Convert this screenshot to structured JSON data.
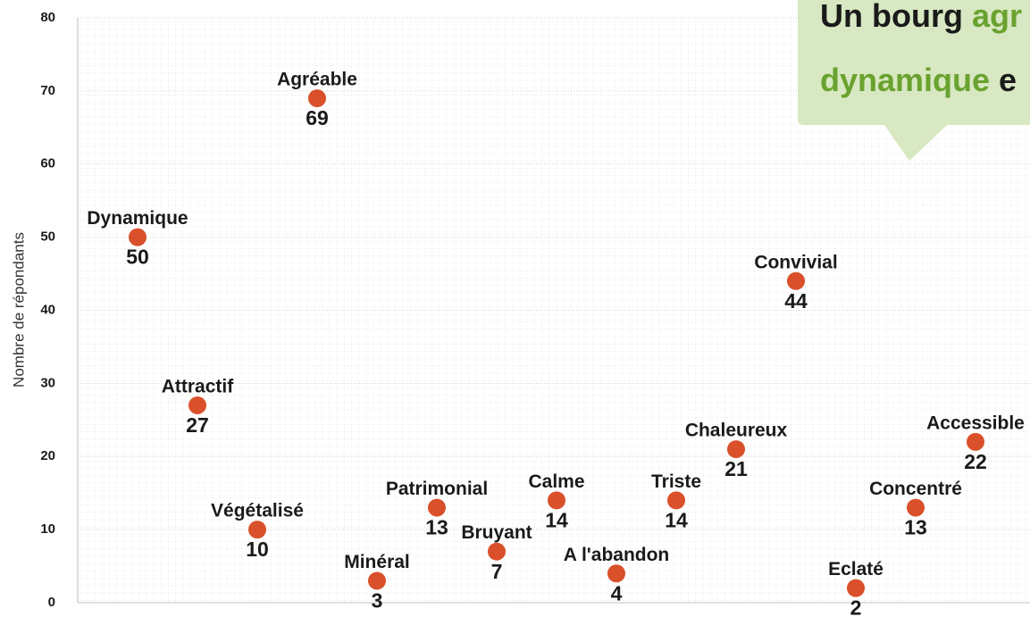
{
  "chart_data": {
    "type": "scatter",
    "y_label": "Nombre de répondants",
    "categories": [
      "Dynamique",
      "Attractif",
      "Végétalisé",
      "Agréable",
      "Minéral",
      "Patrimonial",
      "Bruyant",
      "Calme",
      "A l'abandon",
      "Triste",
      "Chaleureux",
      "Convivial",
      "Eclaté",
      "Concentré",
      "Accessible"
    ],
    "values": [
      50,
      27,
      10,
      69,
      3,
      13,
      7,
      14,
      4,
      14,
      21,
      44,
      2,
      13,
      22
    ],
    "color": "#d9502a",
    "ylim": [
      0,
      80
    ],
    "yticks": [
      0,
      10,
      20,
      30,
      40,
      50,
      60,
      70,
      80
    ],
    "grid": true,
    "callout": {
      "line1": [
        "Un bourg",
        "agr"
      ],
      "line2": [
        "dynamique",
        "e"
      ]
    }
  }
}
